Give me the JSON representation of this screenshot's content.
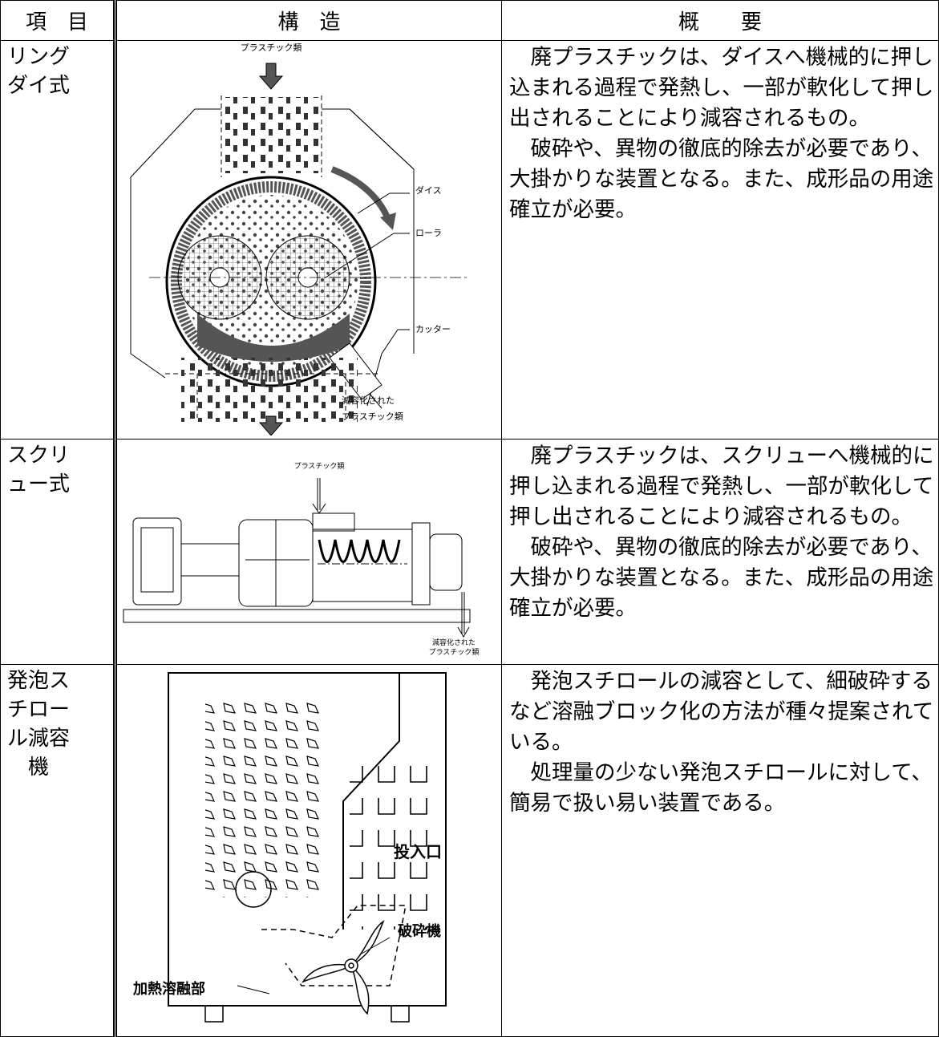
{
  "table": {
    "header": [
      "項　目",
      "構　造",
      "概　　要"
    ],
    "rows": [
      {
        "item": "リングダイ式",
        "diagram_labels": [
          "プラスチック類",
          "ダイス",
          "ローラ",
          "カッター",
          "減容化された",
          "プラスチック類"
        ],
        "overview": [
          "　廃プラスチックは、ダイスへ機械的に押し込まれる過程で発熱し、一部が軟化して押し出されることにより減容されるもの。",
          "　破砕や、異物の徹底的除去が必要であり、大掛かりな装置となる。また、成形品の用途確立が必要。"
        ]
      },
      {
        "item": "スクリュー式",
        "diagram_labels": [
          "プラスチック類",
          "減容化された",
          "プラスチック類"
        ],
        "overview": [
          "　廃プラスチックは、スクリューへ機械的に押し込まれる過程で発熱し、一部が軟化して押し出されることにより減容されるもの。",
          "　破砕や、異物の徹底的除去が必要であり、大掛かりな装置となる。また、成形品の用途確立が必要。"
        ]
      },
      {
        "item": "発泡スチロール減容機",
        "diagram_labels": [
          "投入口",
          "破砕機",
          "加熱溶融部"
        ],
        "overview": [
          "　発泡スチロールの減容として、細破砕するなど溶融ブロック化の方法が種々提案されている。",
          "　処理量の少ない発泡スチロールに対して、簡易で扱い易い装置である。"
        ]
      }
    ]
  }
}
